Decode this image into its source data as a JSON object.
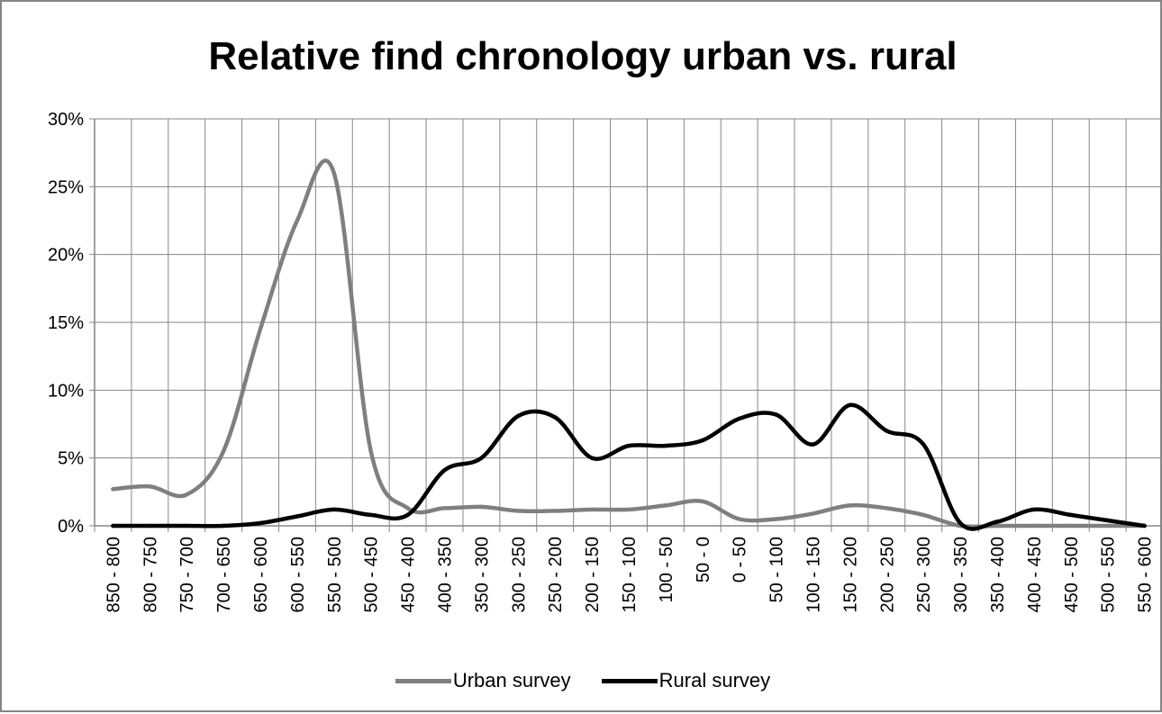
{
  "chart_data": {
    "type": "line",
    "title": "Relative find chronology urban vs. rural",
    "xlabel": "",
    "ylabel": "",
    "categories": [
      "850 - 800",
      "800 - 750",
      "750 - 700",
      "700 - 650",
      "650 - 600",
      "600 - 550",
      "550 - 500",
      "500 - 450",
      "450 - 400",
      "400 - 350",
      "350 - 300",
      "300 - 250",
      "250 - 200",
      "200 - 150",
      "150 - 100",
      "100 - 50",
      "50 - 0",
      "0 - 50",
      "50 - 100",
      "100 - 150",
      "150 - 200",
      "200 - 250",
      "250 - 300",
      "300 - 350",
      "350 - 400",
      "400 - 450",
      "450 - 500",
      "500 - 550",
      "550 - 600"
    ],
    "y_ticks": [
      "0%",
      "5%",
      "10%",
      "15%",
      "20%",
      "25%",
      "30%"
    ],
    "ylim": [
      0,
      30
    ],
    "grid": true,
    "legend_position": "bottom",
    "series": [
      {
        "name": "Urban survey",
        "color": "#7f7f7f",
        "values": [
          2.7,
          2.9,
          2.3,
          5.5,
          14.5,
          22.5,
          26.0,
          5.5,
          1.3,
          1.3,
          1.4,
          1.1,
          1.1,
          1.2,
          1.2,
          1.5,
          1.8,
          0.5,
          0.5,
          0.9,
          1.5,
          1.3,
          0.8,
          0.0,
          0.0,
          0.0,
          0.0,
          0.0,
          0.0
        ]
      },
      {
        "name": "Rural survey",
        "color": "#000000",
        "values": [
          0.0,
          0.0,
          0.0,
          0.0,
          0.2,
          0.7,
          1.2,
          0.8,
          0.8,
          4.1,
          5.0,
          8.1,
          8.0,
          5.0,
          5.9,
          5.9,
          6.3,
          7.9,
          8.2,
          6.0,
          8.9,
          7.0,
          6.0,
          0.2,
          0.3,
          1.2,
          0.8,
          0.4,
          0.0
        ]
      }
    ]
  }
}
